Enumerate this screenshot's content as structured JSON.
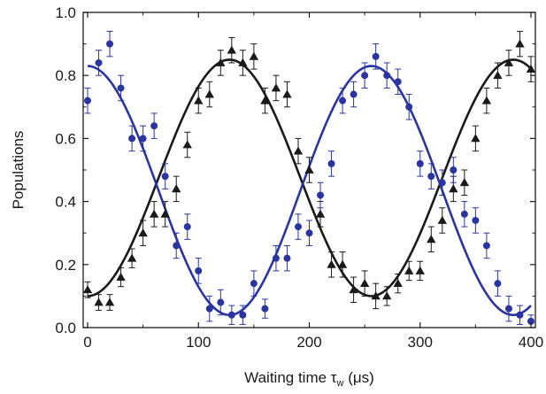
{
  "chart_data": {
    "type": "scatter",
    "xlabel": "Waiting time τw (μs)",
    "ylabel": "Populations",
    "xlabel_parts": {
      "before": "Waiting time ",
      "symbol": "τ",
      "subscript": "w",
      "after": " (μs)"
    },
    "xlim": [
      -4,
      404
    ],
    "ylim": [
      0,
      1.0
    ],
    "x_ticks": [
      0,
      100,
      200,
      300,
      400
    ],
    "x_tick_labels": [
      "0",
      "100",
      "200",
      "300",
      "400"
    ],
    "y_ticks": [
      0.0,
      0.2,
      0.4,
      0.6,
      0.8,
      1.0
    ],
    "y_tick_labels": [
      "0.0",
      "0.2",
      "0.4",
      "0.6",
      "0.8",
      "1.0"
    ],
    "grid": false,
    "series": [
      {
        "marker": "triangle",
        "color": "#1a1a1a",
        "x": [
          0,
          10,
          20,
          30,
          40,
          50,
          60,
          70,
          80,
          90,
          100,
          110,
          120,
          130,
          140,
          150,
          160,
          170,
          180,
          190,
          200,
          210,
          220,
          230,
          240,
          250,
          260,
          270,
          280,
          290,
          300,
          310,
          320,
          330,
          340,
          350,
          360,
          370,
          380,
          390,
          400
        ],
        "y": [
          0.12,
          0.08,
          0.08,
          0.16,
          0.22,
          0.3,
          0.36,
          0.36,
          0.44,
          0.58,
          0.72,
          0.74,
          0.84,
          0.88,
          0.84,
          0.86,
          0.72,
          0.76,
          0.74,
          0.56,
          0.5,
          0.36,
          0.2,
          0.2,
          0.12,
          0.14,
          0.1,
          0.1,
          0.14,
          0.18,
          0.18,
          0.28,
          0.34,
          0.44,
          0.46,
          0.6,
          0.72,
          0.8,
          0.84,
          0.9,
          0.82
        ],
        "err": [
          0.025,
          0.025,
          0.025,
          0.03,
          0.03,
          0.04,
          0.04,
          0.04,
          0.04,
          0.04,
          0.04,
          0.04,
          0.04,
          0.04,
          0.04,
          0.04,
          0.04,
          0.04,
          0.04,
          0.04,
          0.04,
          0.04,
          0.04,
          0.04,
          0.04,
          0.04,
          0.04,
          0.03,
          0.03,
          0.03,
          0.03,
          0.04,
          0.04,
          0.04,
          0.04,
          0.04,
          0.04,
          0.04,
          0.04,
          0.04,
          0.04
        ]
      },
      {
        "marker": "circle",
        "color": "#2a35a0",
        "x": [
          0,
          10,
          20,
          30,
          40,
          50,
          60,
          70,
          80,
          90,
          100,
          110,
          120,
          130,
          140,
          150,
          160,
          170,
          180,
          190,
          200,
          210,
          220,
          230,
          240,
          250,
          260,
          270,
          280,
          290,
          300,
          310,
          320,
          330,
          340,
          350,
          360,
          370,
          380,
          390,
          400
        ],
        "y": [
          0.72,
          0.84,
          0.9,
          0.76,
          0.6,
          0.6,
          0.64,
          0.48,
          0.26,
          0.32,
          0.18,
          0.06,
          0.08,
          0.04,
          0.04,
          0.14,
          0.06,
          0.22,
          0.22,
          0.32,
          0.3,
          0.42,
          0.52,
          0.72,
          0.74,
          0.8,
          0.86,
          0.8,
          0.78,
          0.7,
          0.52,
          0.48,
          0.46,
          0.5,
          0.36,
          0.34,
          0.26,
          0.14,
          0.06,
          0.04,
          0.02
        ],
        "err": [
          0.04,
          0.04,
          0.04,
          0.04,
          0.04,
          0.04,
          0.04,
          0.04,
          0.04,
          0.04,
          0.04,
          0.04,
          0.04,
          0.03,
          0.03,
          0.04,
          0.03,
          0.04,
          0.04,
          0.04,
          0.04,
          0.04,
          0.04,
          0.04,
          0.04,
          0.04,
          0.04,
          0.04,
          0.04,
          0.04,
          0.04,
          0.04,
          0.04,
          0.04,
          0.04,
          0.04,
          0.04,
          0.04,
          0.04,
          0.03,
          0.02
        ]
      }
    ],
    "fits": [
      {
        "color": "#1a1a1a",
        "mean": 0.475,
        "amplitude": 0.375,
        "period": 256,
        "phase": 0
      },
      {
        "color": "#2a35a0",
        "mean": 0.435,
        "amplitude": 0.395,
        "period": 256,
        "phase": 0,
        "inverted": true
      }
    ]
  }
}
